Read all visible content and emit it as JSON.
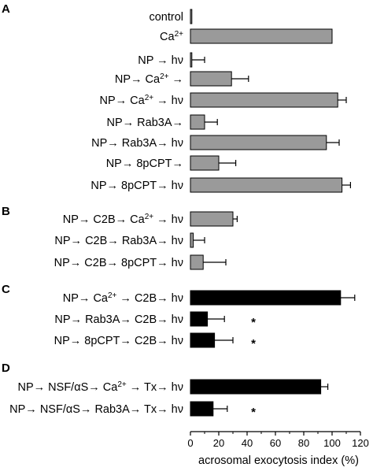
{
  "chart_data": {
    "type": "bar",
    "orientation": "horizontal",
    "xlabel": "acrosomal exocytosis index (%)",
    "xlim": [
      0,
      120
    ],
    "xticks": [
      "0",
      "20",
      "40",
      "60",
      "80",
      "100",
      "120"
    ],
    "grid": false,
    "colors": {
      "gray": "#9a9a9a",
      "black": "#000000"
    },
    "panels": [
      {
        "letter": "A",
        "color": "gray",
        "rows": [
          {
            "label": "control",
            "value": 1,
            "error": 0,
            "sig": ""
          },
          {
            "label": "Ca2+",
            "value": 100,
            "error": 0,
            "sig": ""
          },
          {
            "label": "NP → hν",
            "value": 1,
            "error": 9,
            "sig": ""
          },
          {
            "label": "NP→ Ca2+ →",
            "value": 29,
            "error": 12,
            "sig": ""
          },
          {
            "label": "NP→ Ca2+ → hν",
            "value": 104,
            "error": 6,
            "sig": ""
          },
          {
            "label": "NP→ Rab3A→",
            "value": 10,
            "error": 9,
            "sig": ""
          },
          {
            "label": "NP→ Rab3A→ hν",
            "value": 96,
            "error": 9,
            "sig": ""
          },
          {
            "label": "NP→ 8pCPT→",
            "value": 20,
            "error": 12,
            "sig": ""
          },
          {
            "label": "NP→ 8pCPT→ hν",
            "value": 107,
            "error": 6,
            "sig": ""
          }
        ]
      },
      {
        "letter": "B",
        "color": "gray",
        "rows": [
          {
            "label": "NP→ C2B→ Ca2+ → hν",
            "value": 30,
            "error": 3,
            "sig": ""
          },
          {
            "label": "NP→ C2B→ Rab3A→ hν",
            "value": 2,
            "error": 8,
            "sig": ""
          },
          {
            "label": "NP→ C2B→ 8pCPT→ hν",
            "value": 9,
            "error": 16,
            "sig": ""
          }
        ]
      },
      {
        "letter": "C",
        "color": "black",
        "rows": [
          {
            "label": "NP→ Ca2+ → C2B→ hν",
            "value": 106,
            "error": 10,
            "sig": ""
          },
          {
            "label": "NP→ Rab3A→ C2B→ hν",
            "value": 12,
            "error": 12,
            "sig": "*"
          },
          {
            "label": "NP→ 8pCPT→ C2B→ hν",
            "value": 17,
            "error": 13,
            "sig": "*"
          }
        ]
      },
      {
        "letter": "D",
        "color": "black",
        "rows": [
          {
            "label": "NP→ NSF/αS→ Ca2+ → Tx→ hν",
            "value": 92,
            "error": 5,
            "sig": ""
          },
          {
            "label": "NP→ NSF/αS→ Rab3A→ Tx→ hν",
            "value": 16,
            "error": 10,
            "sig": "*"
          }
        ]
      }
    ]
  }
}
